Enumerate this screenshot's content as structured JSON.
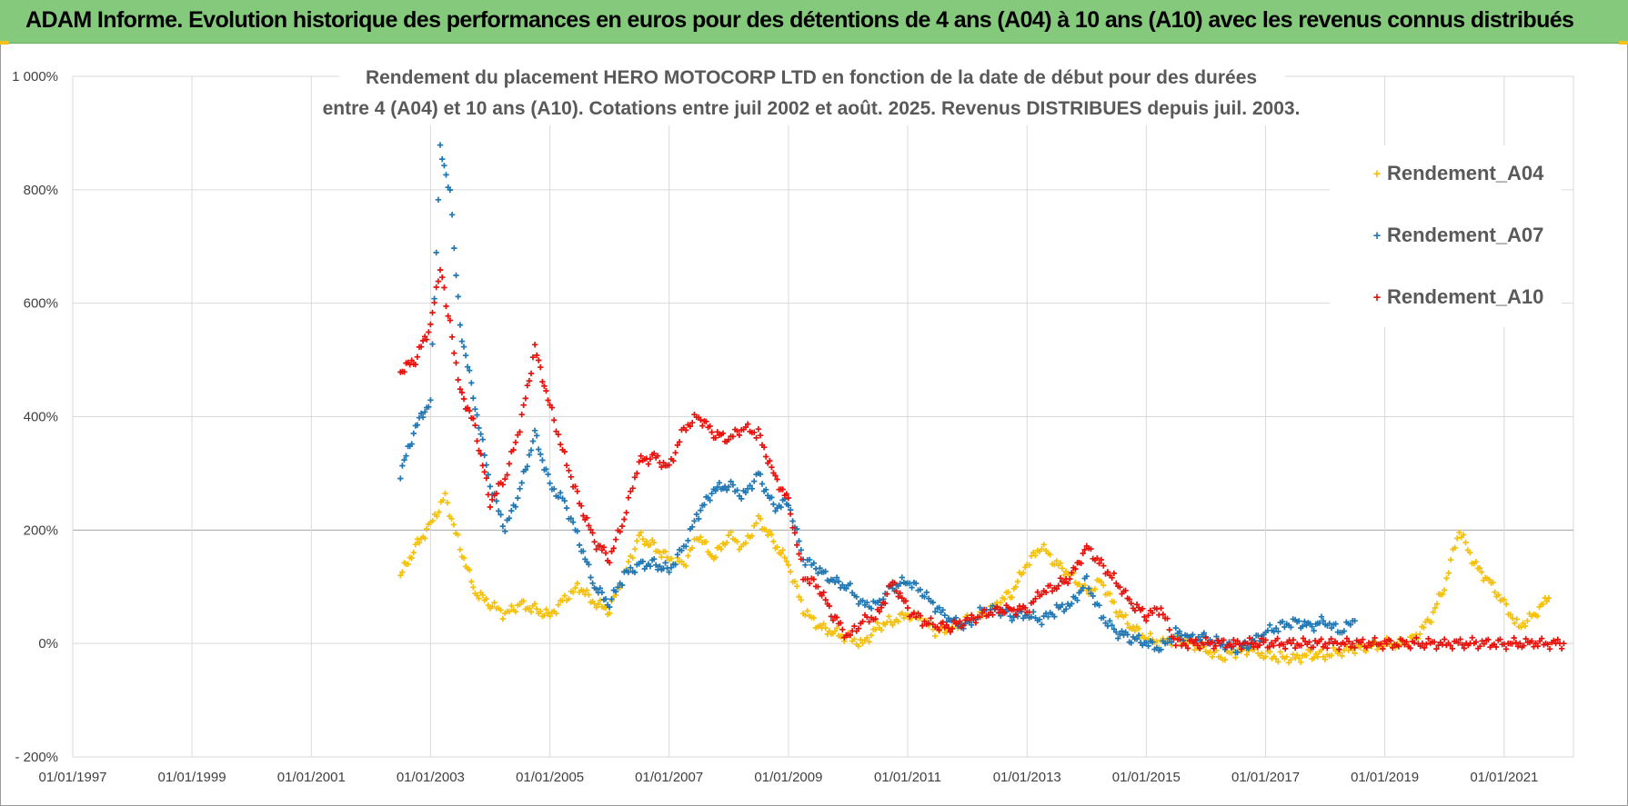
{
  "header": {
    "title": "ADAM Informe. Evolution historique des performances en euros pour des détentions de 4 ans (A04) à 10 ans (A10) avec les revenus connus distribués"
  },
  "chart_data": {
    "type": "scatter",
    "marker": "+",
    "title_lines": [
      "Rendement du placement HERO MOTOCORP LTD en fonction de la date de début pour des durées",
      "entre 4 (A04) et 10 ans (A10). Cotations entre juil 2002 et août. 2025. Revenus DISTRIBUES  depuis juil. 2003."
    ],
    "xlabel": "",
    "ylabel": "",
    "x_ticks": [
      "01/01/1997",
      "01/01/1999",
      "01/01/2001",
      "01/01/2003",
      "01/01/2005",
      "01/01/2007",
      "01/01/2009",
      "01/01/2011",
      "01/01/2013",
      "01/01/2015",
      "01/01/2017",
      "01/01/2019",
      "01/01/2021"
    ],
    "x_range": [
      "1997-01-01",
      "2022-03-01"
    ],
    "y_ticks": [
      "1 000%",
      "800%",
      "600%",
      "400%",
      "200%",
      "0%",
      "- 200%"
    ],
    "y_tick_values": [
      1000,
      800,
      600,
      400,
      200,
      0,
      -200
    ],
    "ylim": [
      -200,
      1000
    ],
    "grid": true,
    "legend_position": "top-right",
    "series": [
      {
        "name": "Rendement_A04",
        "color": "#f5c00b",
        "points": [
          [
            "2002-07",
            120
          ],
          [
            "2002-10",
            170
          ],
          [
            "2003-01",
            210
          ],
          [
            "2003-04",
            260
          ],
          [
            "2003-07",
            170
          ],
          [
            "2003-10",
            90
          ],
          [
            "2004-01",
            70
          ],
          [
            "2004-04",
            50
          ],
          [
            "2004-07",
            70
          ],
          [
            "2004-10",
            60
          ],
          [
            "2005-01",
            50
          ],
          [
            "2005-04",
            80
          ],
          [
            "2005-07",
            100
          ],
          [
            "2005-10",
            70
          ],
          [
            "2006-01",
            60
          ],
          [
            "2006-04",
            120
          ],
          [
            "2006-07",
            190
          ],
          [
            "2006-10",
            170
          ],
          [
            "2007-01",
            150
          ],
          [
            "2007-04",
            140
          ],
          [
            "2007-07",
            190
          ],
          [
            "2007-10",
            150
          ],
          [
            "2008-01",
            190
          ],
          [
            "2008-04",
            170
          ],
          [
            "2008-07",
            220
          ],
          [
            "2008-10",
            180
          ],
          [
            "2009-01",
            140
          ],
          [
            "2009-04",
            60
          ],
          [
            "2009-07",
            30
          ],
          [
            "2009-10",
            20
          ],
          [
            "2010-01",
            10
          ],
          [
            "2010-04",
            0
          ],
          [
            "2010-07",
            30
          ],
          [
            "2010-10",
            40
          ],
          [
            "2011-01",
            50
          ],
          [
            "2011-04",
            40
          ],
          [
            "2011-07",
            20
          ],
          [
            "2011-10",
            30
          ],
          [
            "2012-01",
            40
          ],
          [
            "2012-04",
            50
          ],
          [
            "2012-07",
            70
          ],
          [
            "2012-10",
            90
          ],
          [
            "2013-01",
            140
          ],
          [
            "2013-04",
            170
          ],
          [
            "2013-07",
            140
          ],
          [
            "2013-10",
            120
          ],
          [
            "2014-01",
            90
          ],
          [
            "2014-04",
            110
          ],
          [
            "2014-07",
            60
          ],
          [
            "2014-10",
            30
          ],
          [
            "2015-01",
            10
          ],
          [
            "2015-04",
            0
          ],
          [
            "2015-07",
            10
          ],
          [
            "2015-10",
            0
          ],
          [
            "2016-01",
            -10
          ],
          [
            "2016-04",
            -25
          ],
          [
            "2016-07",
            -15
          ],
          [
            "2016-10",
            -10
          ],
          [
            "2017-01",
            -20
          ],
          [
            "2017-04",
            -25
          ],
          [
            "2017-07",
            -25
          ],
          [
            "2017-10",
            -20
          ],
          [
            "2018-01",
            -20
          ],
          [
            "2018-04",
            -15
          ],
          [
            "2018-07",
            -10
          ],
          [
            "2018-10",
            -5
          ],
          [
            "2019-01",
            0
          ],
          [
            "2019-04",
            0
          ],
          [
            "2019-07",
            10
          ],
          [
            "2019-10",
            40
          ],
          [
            "2020-01",
            100
          ],
          [
            "2020-04",
            200
          ],
          [
            "2020-07",
            140
          ],
          [
            "2020-10",
            110
          ],
          [
            "2021-01",
            70
          ],
          [
            "2021-04",
            30
          ],
          [
            "2021-07",
            50
          ],
          [
            "2021-10",
            80
          ]
        ]
      },
      {
        "name": "Rendement_A07",
        "color": "#1f77b4",
        "points": [
          [
            "2002-07",
            300
          ],
          [
            "2002-10",
            380
          ],
          [
            "2003-01",
            430
          ],
          [
            "2003-03",
            870
          ],
          [
            "2003-05",
            800
          ],
          [
            "2003-07",
            560
          ],
          [
            "2003-10",
            420
          ],
          [
            "2004-01",
            280
          ],
          [
            "2004-04",
            200
          ],
          [
            "2004-07",
            270
          ],
          [
            "2004-10",
            370
          ],
          [
            "2005-01",
            280
          ],
          [
            "2005-04",
            250
          ],
          [
            "2005-07",
            180
          ],
          [
            "2005-10",
            100
          ],
          [
            "2006-01",
            70
          ],
          [
            "2006-04",
            120
          ],
          [
            "2006-07",
            140
          ],
          [
            "2006-10",
            140
          ],
          [
            "2007-01",
            130
          ],
          [
            "2007-04",
            170
          ],
          [
            "2007-07",
            230
          ],
          [
            "2007-10",
            270
          ],
          [
            "2008-01",
            280
          ],
          [
            "2008-04",
            260
          ],
          [
            "2008-07",
            300
          ],
          [
            "2008-10",
            240
          ],
          [
            "2009-01",
            250
          ],
          [
            "2009-04",
            150
          ],
          [
            "2009-07",
            130
          ],
          [
            "2009-10",
            110
          ],
          [
            "2010-01",
            100
          ],
          [
            "2010-04",
            70
          ],
          [
            "2010-07",
            70
          ],
          [
            "2010-10",
            100
          ],
          [
            "2011-01",
            110
          ],
          [
            "2011-04",
            90
          ],
          [
            "2011-07",
            60
          ],
          [
            "2011-10",
            40
          ],
          [
            "2012-01",
            30
          ],
          [
            "2012-04",
            60
          ],
          [
            "2012-07",
            60
          ],
          [
            "2012-10",
            50
          ],
          [
            "2013-01",
            50
          ],
          [
            "2013-04",
            40
          ],
          [
            "2013-07",
            60
          ],
          [
            "2013-10",
            70
          ],
          [
            "2014-01",
            110
          ],
          [
            "2014-04",
            50
          ],
          [
            "2014-07",
            20
          ],
          [
            "2014-10",
            10
          ],
          [
            "2015-01",
            0
          ],
          [
            "2015-04",
            -10
          ],
          [
            "2015-07",
            20
          ],
          [
            "2015-10",
            10
          ],
          [
            "2016-01",
            10
          ],
          [
            "2016-04",
            0
          ],
          [
            "2016-07",
            -10
          ],
          [
            "2016-10",
            0
          ],
          [
            "2017-01",
            20
          ],
          [
            "2017-04",
            30
          ],
          [
            "2017-07",
            40
          ],
          [
            "2017-10",
            30
          ],
          [
            "2018-01",
            40
          ],
          [
            "2018-04",
            20
          ],
          [
            "2018-07",
            40
          ]
        ]
      },
      {
        "name": "Rendement_A10",
        "color": "#e8120c",
        "points": [
          [
            "2002-07",
            480
          ],
          [
            "2002-10",
            500
          ],
          [
            "2003-01",
            560
          ],
          [
            "2003-03",
            660
          ],
          [
            "2003-05",
            560
          ],
          [
            "2003-07",
            450
          ],
          [
            "2003-10",
            380
          ],
          [
            "2004-01",
            250
          ],
          [
            "2004-04",
            290
          ],
          [
            "2004-07",
            380
          ],
          [
            "2004-10",
            520
          ],
          [
            "2005-01",
            420
          ],
          [
            "2005-04",
            330
          ],
          [
            "2005-07",
            250
          ],
          [
            "2005-10",
            180
          ],
          [
            "2006-01",
            150
          ],
          [
            "2006-04",
            220
          ],
          [
            "2006-07",
            320
          ],
          [
            "2006-10",
            330
          ],
          [
            "2007-01",
            310
          ],
          [
            "2007-04",
            380
          ],
          [
            "2007-07",
            400
          ],
          [
            "2007-10",
            370
          ],
          [
            "2008-01",
            360
          ],
          [
            "2008-04",
            380
          ],
          [
            "2008-07",
            370
          ],
          [
            "2008-10",
            300
          ],
          [
            "2009-01",
            250
          ],
          [
            "2009-04",
            120
          ],
          [
            "2009-07",
            100
          ],
          [
            "2009-10",
            50
          ],
          [
            "2010-01",
            10
          ],
          [
            "2010-04",
            40
          ],
          [
            "2010-07",
            50
          ],
          [
            "2010-10",
            110
          ],
          [
            "2011-01",
            60
          ],
          [
            "2011-04",
            40
          ],
          [
            "2011-07",
            30
          ],
          [
            "2011-10",
            30
          ],
          [
            "2012-01",
            40
          ],
          [
            "2012-04",
            50
          ],
          [
            "2012-07",
            60
          ],
          [
            "2012-10",
            60
          ],
          [
            "2013-01",
            60
          ],
          [
            "2013-04",
            90
          ],
          [
            "2013-07",
            100
          ],
          [
            "2013-10",
            120
          ],
          [
            "2014-01",
            170
          ],
          [
            "2014-04",
            140
          ],
          [
            "2014-07",
            110
          ],
          [
            "2014-10",
            70
          ],
          [
            "2015-01",
            50
          ],
          [
            "2015-04",
            60
          ],
          [
            "2015-07",
            0
          ],
          [
            "2016-01",
            0
          ],
          [
            "2016-07",
            0
          ],
          [
            "2017-01",
            0
          ],
          [
            "2017-07",
            0
          ],
          [
            "2018-01",
            0
          ],
          [
            "2018-07",
            0
          ],
          [
            "2019-01",
            0
          ],
          [
            "2019-07",
            0
          ],
          [
            "2020-01",
            0
          ],
          [
            "2020-07",
            0
          ],
          [
            "2021-01",
            0
          ],
          [
            "2021-07",
            0
          ],
          [
            "2022-01",
            0
          ]
        ]
      }
    ]
  }
}
